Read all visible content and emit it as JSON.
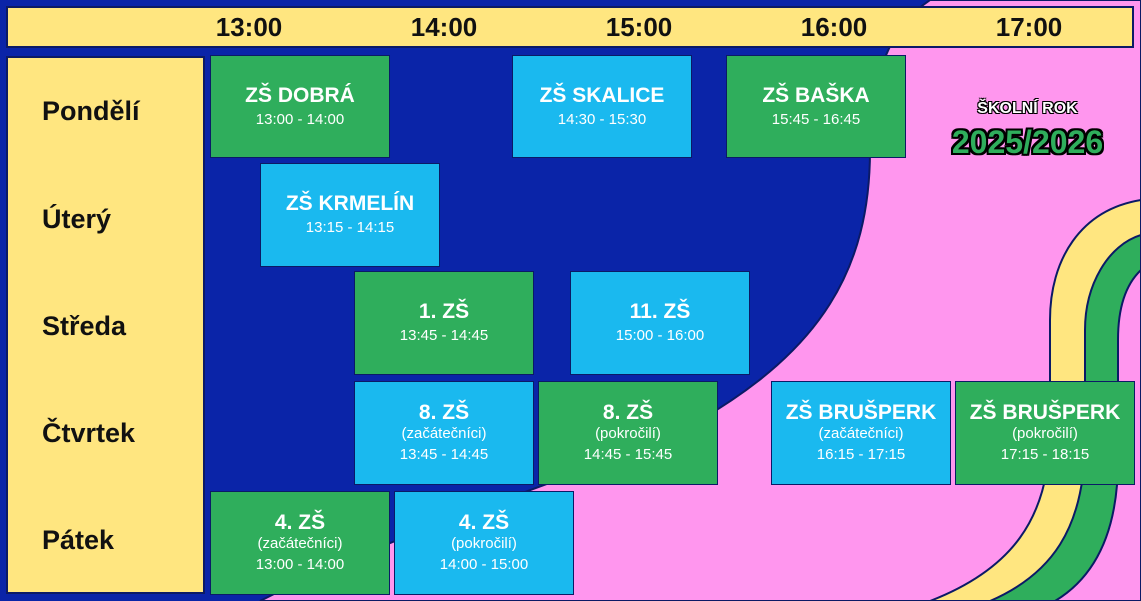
{
  "times": [
    "13:00",
    "14:00",
    "15:00",
    "16:00",
    "17:00"
  ],
  "days": [
    "Pondělí",
    "Úterý",
    "Středa",
    "Čtvrtek",
    "Pátek"
  ],
  "school_year": {
    "label": "ŠKOLNÍ ROK",
    "value": "2025/2026"
  },
  "colors": {
    "green": "#2fae5c",
    "blue": "#1ab9ef",
    "yellow": "#ffe680",
    "navy": "#0a24a8",
    "pink": "#ff96ee"
  },
  "blocks": [
    {
      "name": "ZŠ DOBRÁ",
      "sub": "",
      "time": "13:00 - 14:00"
    },
    {
      "name": "ZŠ SKALICE",
      "sub": "",
      "time": "14:30 - 15:30"
    },
    {
      "name": "ZŠ BAŠKA",
      "sub": "",
      "time": "15:45 - 16:45"
    },
    {
      "name": "ZŠ KRMELÍN",
      "sub": "",
      "time": "13:15 - 14:15"
    },
    {
      "name": "1. ZŠ",
      "sub": "",
      "time": "13:45 - 14:45"
    },
    {
      "name": "11. ZŠ",
      "sub": "",
      "time": "15:00 - 16:00"
    },
    {
      "name": "8. ZŠ",
      "sub": "(začátečníci)",
      "time": "13:45 - 14:45"
    },
    {
      "name": "8. ZŠ",
      "sub": "(pokročilí)",
      "time": "14:45 - 15:45"
    },
    {
      "name": "ZŠ BRUŠPERK",
      "sub": "(začátečníci)",
      "time": "16:15 - 17:15"
    },
    {
      "name": "ZŠ BRUŠPERK",
      "sub": "(pokročilí)",
      "time": "17:15 - 18:15"
    },
    {
      "name": "4. ZŠ",
      "sub": "(začátečníci)",
      "time": "13:00 - 14:00"
    },
    {
      "name": "4. ZŠ",
      "sub": "(pokročilí)",
      "time": "14:00 - 15:00"
    }
  ]
}
